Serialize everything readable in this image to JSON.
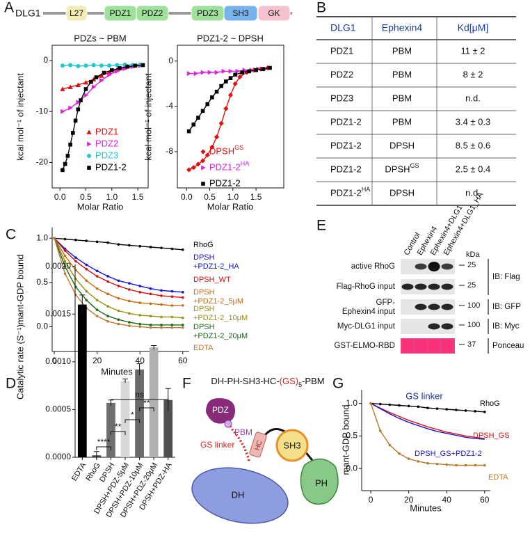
{
  "panel_labels": [
    "A",
    "B",
    "C",
    "D",
    "E",
    "F",
    "G"
  ],
  "domain_bar": {
    "protein": "DLG1",
    "domains": [
      "L27",
      "PDZ1",
      "PDZ2",
      "PDZ3",
      "SH3",
      "GK"
    ]
  },
  "chart_data": [
    {
      "type": "scatter",
      "title": "PDZs ~ PBM",
      "x_label": "Molar Ratio",
      "y_label": "kcal mol⁻¹ of injectant",
      "xlim": [
        -0.15,
        1.7
      ],
      "ylim": [
        -25,
        3
      ],
      "xticks": [
        {
          "value": 0,
          "label": "0.0"
        },
        {
          "value": 0.5,
          "label": "0.5"
        },
        {
          "value": 1,
          "label": "1.0"
        },
        {
          "value": 1.5,
          "label": "1.5"
        }
      ],
      "yticks": [
        0,
        -10,
        -20
      ],
      "series": [
        {
          "name": "PDZ1",
          "color": "#e01010",
          "marker": "triangle",
          "x": [
            0.05,
            0.2,
            0.35,
            0.5,
            0.65,
            0.8,
            0.95,
            1.1,
            1.25,
            1.4,
            1.55
          ],
          "values": [
            -5.6,
            -5.2,
            -4.8,
            -4.3,
            -3.7,
            -3.0,
            -2.3,
            -1.8,
            -1.4,
            -1.1,
            -0.9
          ]
        },
        {
          "name": "PDZ2",
          "color": "#e020e0",
          "marker": "triangle-right",
          "x": [
            0.05,
            0.2,
            0.35,
            0.5,
            0.65,
            0.8,
            0.95,
            1.1,
            1.25,
            1.4,
            1.55
          ],
          "values": [
            -10.0,
            -9.3,
            -8.2,
            -6.8,
            -5.2,
            -3.9,
            -2.8,
            -2.1,
            -1.6,
            -1.2,
            -1.0
          ]
        },
        {
          "name": "PDZ3",
          "color": "#20c8c8",
          "marker": "circle",
          "x": [
            0.05,
            0.2,
            0.35,
            0.5,
            0.65,
            0.8,
            0.95,
            1.1,
            1.25,
            1.4,
            1.55
          ],
          "values": [
            -1.0,
            -0.9,
            -1.1,
            -1.0,
            -0.9,
            -1.0,
            -1.0,
            -0.9,
            -0.8,
            -0.9,
            -0.8
          ]
        },
        {
          "name": "PDZ1-2",
          "color": "#000000",
          "marker": "square",
          "x": [
            0.05,
            0.1,
            0.15,
            0.2,
            0.25,
            0.3,
            0.35,
            0.4,
            0.5,
            0.6,
            0.7,
            0.85,
            1.0,
            1.15,
            1.3,
            1.45,
            1.6
          ],
          "values": [
            -21.5,
            -20.3,
            -18.7,
            -16.5,
            -14.2,
            -11.8,
            -9.6,
            -7.8,
            -5.6,
            -4.2,
            -3.3,
            -2.4,
            -1.9,
            -1.5,
            -1.2,
            -1.0,
            -0.9
          ]
        }
      ]
    },
    {
      "type": "scatter",
      "title": "PDZ1-2 ~ DPSH",
      "x_label": "Molar Ratio",
      "y_label": "kcal mol⁻¹ of injectant",
      "xlim": [
        -0.2,
        2.1
      ],
      "ylim": [
        -11.2,
        1.4
      ],
      "xticks": [
        {
          "value": 0,
          "label": "0.0"
        },
        {
          "value": 0.5,
          "label": "0.5"
        },
        {
          "value": 1,
          "label": "1.0"
        },
        {
          "value": 1.5,
          "label": "1.5"
        }
      ],
      "yticks": [
        0,
        -4,
        -8
      ],
      "series": [
        {
          "name": "DPSH",
          "sup": "GS",
          "color": "#e01010",
          "marker": "diamond",
          "x": [
            0.05,
            0.15,
            0.25,
            0.35,
            0.45,
            0.55,
            0.65,
            0.75,
            0.85,
            0.95,
            1.05,
            1.15,
            1.3,
            1.45,
            1.6,
            1.75
          ],
          "values": [
            -9.6,
            -9.4,
            -9.1,
            -8.8,
            -8.3,
            -7.6,
            -6.7,
            -5.5,
            -4.2,
            -3.0,
            -2.0,
            -1.4,
            -1.0,
            -0.8,
            -0.7,
            -0.6
          ]
        },
        {
          "name": "PDZ1-2",
          "sup": "HA",
          "color": "#e020e0",
          "marker": "triangle-right",
          "x": [
            0.05,
            0.2,
            0.35,
            0.5,
            0.65,
            0.8,
            0.95,
            1.1,
            1.25,
            1.4,
            1.55,
            1.7
          ],
          "values": [
            -1.1,
            -1.1,
            -1.0,
            -1.0,
            -1.0,
            -0.9,
            -0.9,
            -0.9,
            -0.8,
            -0.8,
            -0.7,
            -0.7
          ]
        },
        {
          "name": "PDZ1-2",
          "color": "#000000",
          "marker": "square",
          "x": [
            0.05,
            0.15,
            0.25,
            0.35,
            0.45,
            0.55,
            0.65,
            0.75,
            0.85,
            0.95,
            1.05,
            1.2,
            1.35,
            1.5,
            1.65,
            1.8
          ],
          "values": [
            -6.2,
            -5.6,
            -5.0,
            -4.4,
            -3.8,
            -3.2,
            -2.7,
            -2.2,
            -1.8,
            -1.5,
            -1.2,
            -1.0,
            -0.9,
            -0.8,
            -0.7,
            -0.6
          ]
        }
      ]
    },
    {
      "type": "line",
      "x_label": "Minutes",
      "y_label": "mant-GDP bound",
      "x": [
        0,
        5,
        10,
        15,
        20,
        25,
        30,
        35,
        40,
        45,
        50,
        55,
        60
      ],
      "xlim": [
        -1,
        63
      ],
      "ylim": [
        -0.28,
        1.12
      ],
      "xticks": [
        0,
        20,
        40,
        60
      ],
      "yticks": [
        {
          "value": 0,
          "label": "0.0"
        },
        {
          "value": 0.5,
          "label": "0.5"
        },
        {
          "value": 1,
          "label": "1.0"
        }
      ],
      "series": [
        {
          "name": "RhoG",
          "color": "#000000",
          "marker": "dot",
          "values": [
            1.0,
            0.99,
            0.98,
            0.97,
            0.96,
            0.95,
            0.93,
            0.92,
            0.91,
            0.9,
            0.89,
            0.88,
            0.87
          ]
        },
        {
          "name": "DPSH\n+PDZ1-2_HA",
          "color": "#1414d0",
          "marker": "dot",
          "values": [
            1.0,
            0.88,
            0.78,
            0.7,
            0.63,
            0.57,
            0.52,
            0.49,
            0.46,
            0.43,
            0.41,
            0.4,
            0.39
          ]
        },
        {
          "name": "DPSH_WT",
          "color": "#d01010",
          "marker": "dot",
          "values": [
            1.0,
            0.86,
            0.74,
            0.65,
            0.57,
            0.51,
            0.46,
            0.42,
            0.39,
            0.37,
            0.35,
            0.34,
            0.33
          ]
        },
        {
          "name": "DPSH\n+PDZ1-2_5μM",
          "color": "#cc6a10",
          "marker": "dot",
          "values": [
            1.0,
            0.8,
            0.64,
            0.52,
            0.43,
            0.37,
            0.32,
            0.29,
            0.27,
            0.26,
            0.25,
            0.24,
            0.24
          ]
        },
        {
          "name": "DPSH\n+PDZ1-2_10μM",
          "color": "#9a9010",
          "marker": "dot",
          "values": [
            1.0,
            0.74,
            0.54,
            0.4,
            0.3,
            0.23,
            0.18,
            0.15,
            0.13,
            0.12,
            0.11,
            0.11,
            0.1
          ]
        },
        {
          "name": "DPSH\n+PDZ1-2_20μM",
          "color": "#1a6a1a",
          "marker": "dot",
          "values": [
            1.0,
            0.68,
            0.45,
            0.3,
            0.19,
            0.12,
            0.08,
            0.05,
            0.03,
            0.02,
            0.02,
            0.02,
            0.02
          ]
        },
        {
          "name": "EDTA",
          "color": "#c07a30",
          "marker": "dot",
          "values": [
            1.0,
            0.6,
            0.36,
            0.21,
            0.12,
            0.06,
            0.03,
            0.01,
            0.0,
            -0.01,
            -0.01,
            -0.01,
            -0.01
          ]
        }
      ]
    },
    {
      "type": "bar",
      "y_label": "Catalytic rate (S⁻¹)",
      "categories": [
        "EDTA",
        "RhoG",
        "DPSH",
        "DPSH+PDZ-5μM",
        "DPSH+PDZ-10μM",
        "DPSH+PDZ-20μM",
        "DPSH+PDZ-HA"
      ],
      "values": [
        0.0016,
        2e-05,
        0.00057,
        0.0008,
        0.00092,
        0.00115,
        0.0006
      ],
      "errors": [
        0.0001,
        4e-05,
        3e-05,
        2e-05,
        6e-05,
        2e-05,
        0.00012
      ],
      "colors": [
        "#000000",
        "#444444",
        "#6e6e6e",
        "#d8d8d8",
        "#6a6a6a",
        "#b0b0b0",
        "#505050"
      ],
      "ylim": [
        0,
        0.00202
      ],
      "yticks": [
        {
          "value": 0,
          "label": "0.0000"
        },
        {
          "value": 0.0005,
          "label": "0.0005"
        },
        {
          "value": 0.001,
          "label": "0.0010"
        },
        {
          "value": 0.0015,
          "label": "0.0015"
        },
        {
          "value": 0.002,
          "label": "0.0020"
        }
      ],
      "significance": [
        {
          "pair": [
            "DPSH",
            "DPSH+PDZ-HA"
          ],
          "label": "ns"
        },
        {
          "pair": [
            "RhoG",
            "DPSH"
          ],
          "label": "****"
        },
        {
          "pair": [
            "DPSH",
            "DPSH+PDZ-5μM"
          ],
          "label": "**"
        },
        {
          "pair": [
            "DPSH+PDZ-5μM",
            "DPSH+PDZ-10μM"
          ],
          "label": "*"
        },
        {
          "pair": [
            "DPSH+PDZ-10μM",
            "DPSH+PDZ-20μM"
          ],
          "label": "**"
        }
      ]
    },
    {
      "type": "line",
      "title": "GS linker",
      "title_color": "#1a2a9a",
      "x_label": "Minutes",
      "y_label": "mant-GDP bound",
      "x": [
        0,
        5,
        10,
        15,
        20,
        25,
        30,
        35,
        40,
        45,
        50,
        55,
        60
      ],
      "xlim": [
        -4.8,
        63
      ],
      "ylim": [
        -0.34,
        1.21
      ],
      "xticks": [
        0,
        20,
        40,
        60
      ],
      "yticks": [
        {
          "value": 0,
          "label": "0.0"
        },
        {
          "value": 0.5,
          "label": "0.5"
        },
        {
          "value": 1,
          "label": "1.0"
        }
      ],
      "series": [
        {
          "name": "RhoG",
          "color": "#000000",
          "marker": "dot",
          "values": [
            1.0,
            0.99,
            0.98,
            0.97,
            0.96,
            0.95,
            0.93,
            0.92,
            0.91,
            0.9,
            0.89,
            0.88,
            0.87
          ]
        },
        {
          "name": "DPSH_GS",
          "color": "#e01010",
          "values": [
            1.0,
            0.93,
            0.86,
            0.8,
            0.74,
            0.69,
            0.64,
            0.6,
            0.56,
            0.53,
            0.5,
            0.48,
            0.46
          ]
        },
        {
          "name": "DPSH_GS+PDZ1-2",
          "color": "#1414d0",
          "values": [
            1.0,
            0.92,
            0.84,
            0.77,
            0.71,
            0.66,
            0.61,
            0.57,
            0.54,
            0.51,
            0.48,
            0.46,
            0.45
          ]
        },
        {
          "name": "EDTA",
          "color": "#b87a28",
          "marker": "dot",
          "values": [
            1.0,
            0.58,
            0.36,
            0.23,
            0.15,
            0.11,
            0.08,
            0.07,
            0.06,
            0.05,
            0.05,
            0.05,
            0.05
          ]
        }
      ]
    }
  ],
  "table": {
    "header": [
      "DLG1",
      "Ephexin4",
      "Kd[μM]"
    ],
    "rows": [
      [
        {
          "text": "PDZ1"
        },
        {
          "text": "PBM"
        },
        {
          "text": "11 ± 2"
        }
      ],
      [
        {
          "text": "PDZ2"
        },
        {
          "text": "PBM"
        },
        {
          "text": "8 ± 2"
        }
      ],
      [
        {
          "text": "PDZ3"
        },
        {
          "text": "PBM"
        },
        {
          "text": "n.d."
        }
      ],
      [
        {
          "text": "PDZ1-2"
        },
        {
          "text": "PBM"
        },
        {
          "text": "3.4 ± 0.3"
        }
      ],
      [
        {
          "text": "PDZ1-2"
        },
        {
          "text": "DPSH"
        },
        {
          "text": "8.5 ± 0.6"
        }
      ],
      [
        {
          "text": "PDZ1-2"
        },
        {
          "text": "DPSH",
          "sup": "GS"
        },
        {
          "text": "2.5 ± 0.4"
        }
      ],
      [
        {
          "text": "PDZ1-2",
          "sup": "HA"
        },
        {
          "text": "DPSH"
        },
        {
          "text": "n.d."
        }
      ]
    ]
  },
  "blot": {
    "lanes": [
      "Control",
      "Ephexin4",
      "Ephexin4+DLG1",
      "Ephexin4+DLG1_HA"
    ],
    "kda_label": "kDa",
    "rows": [
      {
        "label": "active RhoG",
        "marker": 25
      },
      {
        "label": "Flag-RhoG input",
        "marker": 25
      },
      {
        "label": "GFP-\nEphexin4 input",
        "marker": 100
      },
      {
        "label": "Myc-DLG1 input",
        "marker": 100
      },
      {
        "label": "GST-ELMO-RBD",
        "marker": 37
      }
    ],
    "antibodies": [
      "IB: Flag",
      "IB: GFP",
      "IB: Myc",
      "Ponceau"
    ]
  },
  "diagram": {
    "construct": {
      "before": "DH-PH-SH3-HC-",
      "highlight": "(GS)",
      "subscript": "5",
      "after": "-PBM"
    },
    "labels": {
      "pdz": "PDZ",
      "pbm": "PBM",
      "linker": "GS linker",
      "hc": "HC",
      "sh3": "SH3",
      "ph": "PH",
      "dh": "DH"
    }
  }
}
